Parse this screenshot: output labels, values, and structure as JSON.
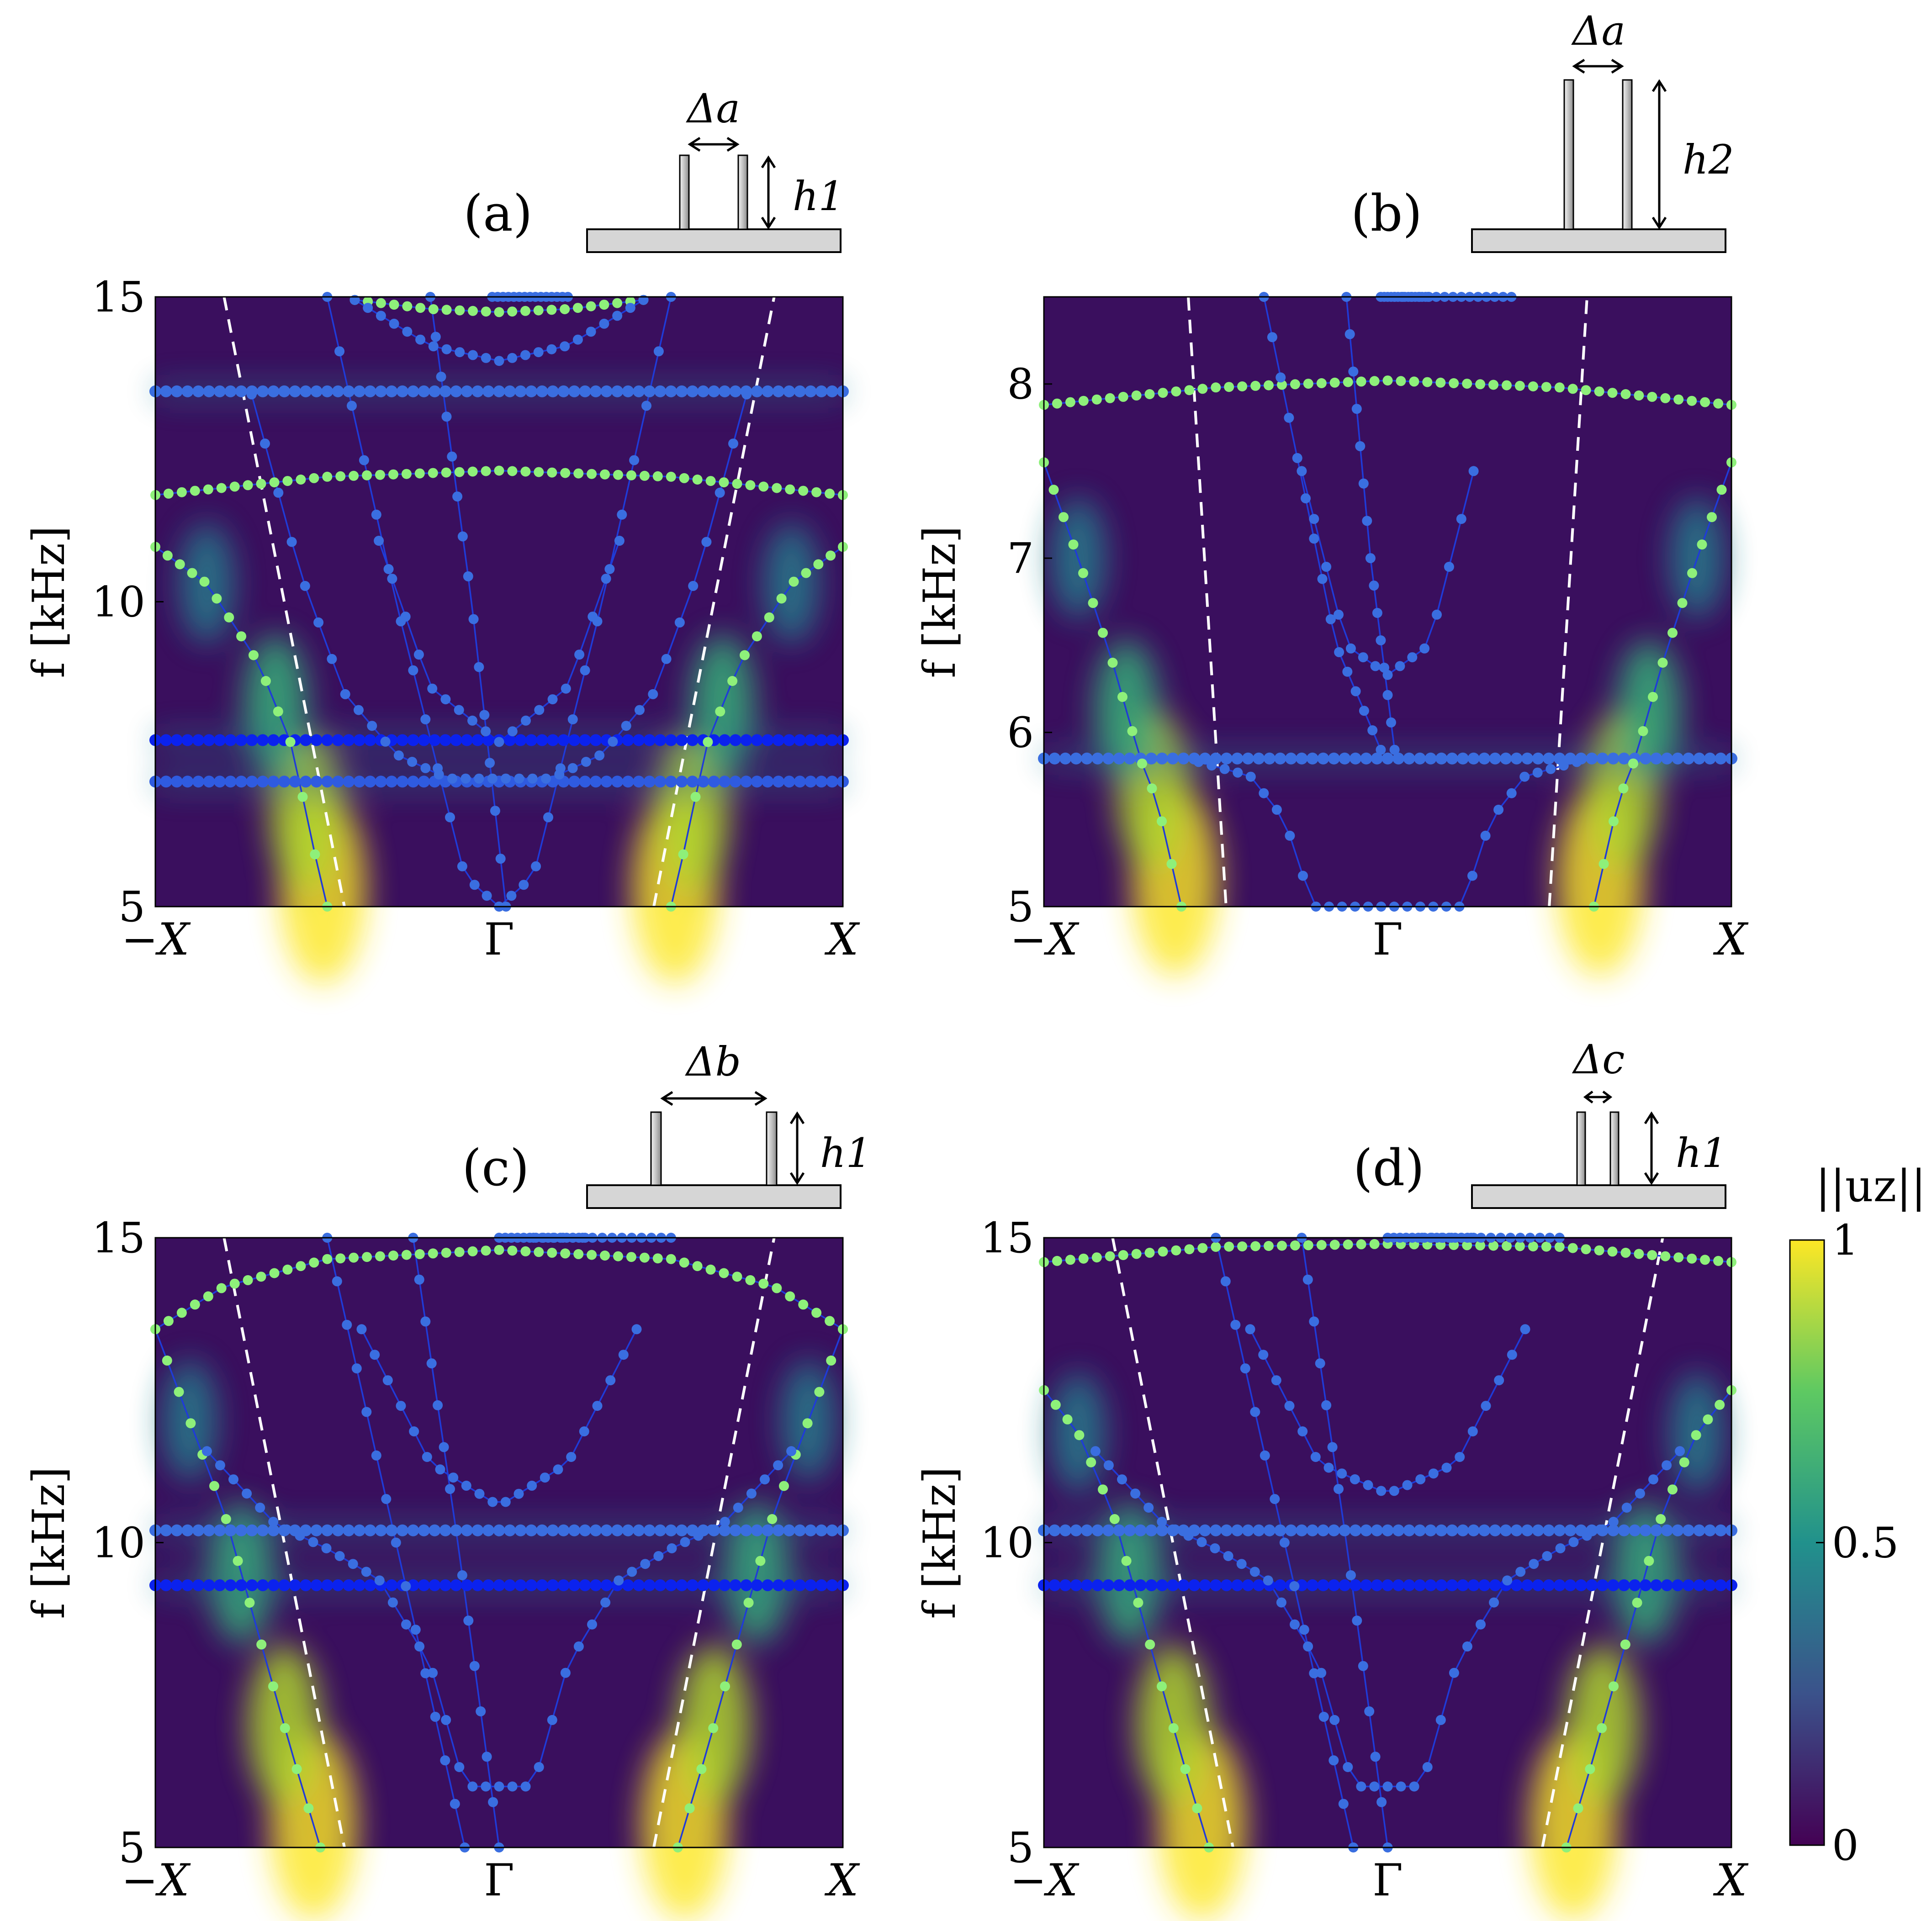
{
  "chart_data": [
    {
      "panel": "(a)",
      "type": "scatter",
      "xlabel": "",
      "ylabel": "f [kHz]",
      "xticks": [
        "−X",
        "Γ",
        "X"
      ],
      "xlim": [
        -1,
        1
      ],
      "ylim": [
        5,
        15
      ],
      "yticks": [
        5,
        10,
        15
      ],
      "inset": {
        "gap_label": "Δa",
        "height_label": "h1"
      },
      "series": [
        {
          "role": "light-line",
          "color": "#ffffff",
          "x": [
            -0.8,
            -0.45,
            0.45,
            0.8
          ],
          "y": [
            15,
            5,
            5,
            15
          ]
        },
        {
          "role": "flat-band",
          "color": "#0b22ee",
          "x": [
            -1,
            1
          ],
          "y": [
            7.73,
            7.73
          ]
        },
        {
          "role": "flat-band",
          "color": "#2f5be0",
          "x": [
            -1,
            1
          ],
          "y": [
            7.05,
            7.05
          ]
        },
        {
          "role": "flat-band",
          "color": "#3a6ee0",
          "x": [
            -1,
            1
          ],
          "y": [
            13.45,
            13.45
          ]
        },
        {
          "role": "band",
          "color": "#8ef07a",
          "x": [
            -1,
            -0.5,
            0,
            0.5,
            1
          ],
          "y": [
            11.75,
            12.05,
            12.15,
            12.05,
            11.75
          ]
        },
        {
          "role": "band",
          "color": "#8ef07a",
          "x": [
            -1,
            -0.85,
            -0.7,
            -0.6,
            -0.55,
            -0.5
          ],
          "y": [
            10.9,
            10.3,
            9.0,
            7.6,
            6.2,
            5.0
          ]
        },
        {
          "role": "band",
          "color": "#8ef07a",
          "x": [
            0.5,
            0.55,
            0.6,
            0.7,
            0.85,
            1
          ],
          "y": [
            5.0,
            6.2,
            7.6,
            9.0,
            10.3,
            10.9
          ]
        },
        {
          "role": "band",
          "color": "#8ef07a",
          "x": [
            -0.42,
            -0.2,
            0,
            0.2,
            0.42
          ],
          "y": [
            14.95,
            14.8,
            14.75,
            14.8,
            14.95
          ]
        },
        {
          "role": "band",
          "color": "#3a6ee0",
          "x": [
            -0.42,
            -0.2,
            0,
            0.2,
            0.42
          ],
          "y": [
            14.95,
            14.2,
            13.95,
            14.2,
            14.95
          ]
        },
        {
          "role": "band",
          "color": "#3a6ee0",
          "x": [
            -0.35,
            -0.2,
            0,
            0.2,
            0.35
          ],
          "y": [
            11.0,
            8.6,
            7.7,
            8.6,
            11.0
          ]
        },
        {
          "role": "band",
          "color": "#3a6ee0",
          "x": [
            -0.72,
            -0.58,
            -0.45,
            -0.3,
            -0.15,
            0.15,
            0.3,
            0.45,
            0.58,
            0.72
          ],
          "y": [
            13.4,
            10.5,
            8.5,
            7.5,
            7.1,
            7.1,
            7.5,
            8.5,
            10.5,
            13.4
          ]
        },
        {
          "role": "band",
          "color": "#3a6ee0",
          "x": [
            -0.5,
            -0.3,
            -0.1,
            0
          ],
          "y": [
            15,
            10,
            5.5,
            5
          ]
        },
        {
          "role": "band",
          "color": "#3a6ee0",
          "x": [
            0,
            0.1,
            0.3,
            0.5
          ],
          "y": [
            5,
            5.5,
            10,
            15
          ]
        },
        {
          "role": "band",
          "color": "#3a6ee0",
          "x": [
            -0.2,
            -0.08,
            0.02
          ],
          "y": [
            15,
            10,
            5
          ]
        },
        {
          "role": "band",
          "color": "#3a6ee0",
          "x": [
            0.2,
            0.08,
            -0.02
          ],
          "y": [
            15,
            10,
            5
          ]
        }
      ]
    },
    {
      "panel": "(b)",
      "type": "scatter",
      "xlabel": "",
      "ylabel": "f [kHz]",
      "xticks": [
        "−X",
        "Γ",
        "X"
      ],
      "xlim": [
        -1,
        1
      ],
      "ylim": [
        5,
        8.5
      ],
      "yticks": [
        5,
        6,
        7,
        8
      ],
      "inset": {
        "gap_label": "Δa",
        "height_label": "h2"
      },
      "series": [
        {
          "role": "light-line",
          "color": "#ffffff",
          "x": [
            -0.58,
            -0.47,
            0.47,
            0.58
          ],
          "y": [
            8.5,
            5,
            5,
            8.5
          ]
        },
        {
          "role": "flat-band",
          "color": "#3a6ee0",
          "x": [
            -1,
            1
          ],
          "y": [
            5.85,
            5.85
          ]
        },
        {
          "role": "band",
          "color": "#8ef07a",
          "x": [
            -1,
            -0.5,
            0,
            0.5,
            1
          ],
          "y": [
            7.88,
            7.98,
            8.02,
            7.98,
            7.88
          ]
        },
        {
          "role": "band",
          "color": "#8ef07a",
          "x": [
            -1,
            -0.9,
            -0.8,
            -0.72,
            -0.67,
            -0.6
          ],
          "y": [
            7.55,
            7.0,
            6.4,
            5.85,
            5.6,
            5.0
          ]
        },
        {
          "role": "band",
          "color": "#8ef07a",
          "x": [
            0.6,
            0.67,
            0.72,
            0.8,
            0.9,
            1
          ],
          "y": [
            5.0,
            5.6,
            5.85,
            6.4,
            7.0,
            7.55
          ]
        },
        {
          "role": "band",
          "color": "#3a6ee0",
          "x": [
            -0.25,
            -0.12,
            0,
            0.12,
            0.25
          ],
          "y": [
            7.5,
            6.5,
            6.33,
            6.5,
            7.5
          ]
        },
        {
          "role": "band",
          "color": "#3a6ee0",
          "x": [
            -0.55,
            -0.4,
            -0.3,
            -0.25,
            -0.22,
            0.22,
            0.25,
            0.3,
            0.4,
            0.55
          ],
          "y": [
            5.83,
            5.75,
            5.5,
            5.2,
            5.0,
            5.0,
            5.2,
            5.5,
            5.75,
            5.83
          ]
        },
        {
          "role": "band",
          "color": "#3a6ee0",
          "x": [
            -0.36,
            -0.15,
            -0.02
          ],
          "y": [
            8.5,
            6.5,
            5.9
          ]
        },
        {
          "role": "band",
          "color": "#3a6ee0",
          "x": [
            0.36,
            0.15,
            0.02
          ],
          "y": [
            8.5,
            6.5,
            5.9
          ]
        },
        {
          "role": "band",
          "color": "#3a6ee0",
          "x": [
            -0.12,
            -0.05,
            0.02
          ],
          "y": [
            8.5,
            7.0,
            5.9
          ]
        },
        {
          "role": "band",
          "color": "#3a6ee0",
          "x": [
            0.12,
            0.05,
            -0.02
          ],
          "y": [
            8.5,
            7.0,
            5.9
          ]
        }
      ]
    },
    {
      "panel": "(c)",
      "type": "scatter",
      "xlabel": "",
      "ylabel": "f [kHz]",
      "xticks": [
        "−X",
        "Γ",
        "X"
      ],
      "xlim": [
        -1,
        1
      ],
      "ylim": [
        5,
        15
      ],
      "yticks": [
        5,
        10,
        15
      ],
      "inset": {
        "gap_label": "Δb",
        "height_label": "h1"
      },
      "series": [
        {
          "role": "light-line",
          "color": "#ffffff",
          "x": [
            -0.8,
            -0.45,
            0.45,
            0.8
          ],
          "y": [
            15,
            5,
            5,
            15
          ]
        },
        {
          "role": "flat-band",
          "color": "#0b22ee",
          "x": [
            -1,
            1
          ],
          "y": [
            9.3,
            9.3
          ]
        },
        {
          "role": "flat-band",
          "color": "#3a6ee0",
          "x": [
            -1,
            1
          ],
          "y": [
            10.2,
            10.2
          ]
        },
        {
          "role": "band",
          "color": "#8ef07a",
          "x": [
            -1,
            -0.8,
            -0.5,
            0,
            0.5,
            0.8,
            1
          ],
          "y": [
            13.5,
            14.2,
            14.65,
            14.8,
            14.65,
            14.2,
            13.5
          ]
        },
        {
          "role": "band",
          "color": "#8ef07a",
          "x": [
            -1,
            -0.9,
            -0.8,
            -0.7,
            -0.6,
            -0.52
          ],
          "y": [
            13.5,
            12.0,
            10.5,
            8.5,
            6.5,
            5.0
          ]
        },
        {
          "role": "band",
          "color": "#8ef07a",
          "x": [
            0.52,
            0.6,
            0.7,
            0.8,
            0.9,
            1
          ],
          "y": [
            5.0,
            6.5,
            8.5,
            10.5,
            12.0,
            13.5
          ]
        },
        {
          "role": "band",
          "color": "#3a6ee0",
          "x": [
            -0.4,
            -0.2,
            0,
            0.2,
            0.4
          ],
          "y": [
            13.5,
            11.3,
            10.6,
            11.3,
            13.5
          ]
        },
        {
          "role": "band",
          "color": "#3a6ee0",
          "x": [
            -0.85,
            -0.65,
            -0.5,
            -0.35,
            -0.2,
            -0.1,
            0.1,
            0.2,
            0.35,
            0.5,
            0.65,
            0.85
          ],
          "y": [
            11.5,
            10.3,
            9.9,
            9.4,
            8.0,
            6.0,
            6.0,
            8.0,
            9.4,
            9.9,
            10.3,
            11.5
          ]
        },
        {
          "role": "band",
          "color": "#3a6ee0",
          "x": [
            -0.5,
            -0.3,
            -0.1
          ],
          "y": [
            15,
            10,
            5
          ]
        },
        {
          "role": "band",
          "color": "#3a6ee0",
          "x": [
            0.5,
            0.3,
            0.1
          ],
          "y": [
            15,
            10,
            5
          ]
        },
        {
          "role": "band",
          "color": "#3a6ee0",
          "x": [
            -0.25,
            -0.12,
            0
          ],
          "y": [
            15,
            10,
            5
          ]
        },
        {
          "role": "band",
          "color": "#3a6ee0",
          "x": [
            0.25,
            0.12,
            0
          ],
          "y": [
            15,
            10,
            5
          ]
        }
      ]
    },
    {
      "panel": "(d)",
      "type": "scatter",
      "xlabel": "",
      "ylabel": "f [kHz]",
      "xticks": [
        "−X",
        "Γ",
        "X"
      ],
      "xlim": [
        -1,
        1
      ],
      "ylim": [
        5,
        15
      ],
      "yticks": [
        5,
        10,
        15
      ],
      "inset": {
        "gap_label": "Δc",
        "height_label": "h1"
      },
      "series": [
        {
          "role": "light-line",
          "color": "#ffffff",
          "x": [
            -0.8,
            -0.45,
            0.45,
            0.8
          ],
          "y": [
            15,
            5,
            5,
            15
          ]
        },
        {
          "role": "flat-band",
          "color": "#0b22ee",
          "x": [
            -1,
            1
          ],
          "y": [
            9.3,
            9.3
          ]
        },
        {
          "role": "flat-band",
          "color": "#3a6ee0",
          "x": [
            -1,
            1
          ],
          "y": [
            10.2,
            10.2
          ]
        },
        {
          "role": "band",
          "color": "#8ef07a",
          "x": [
            -1,
            -0.5,
            0,
            0.5,
            1
          ],
          "y": [
            14.6,
            14.85,
            14.9,
            14.85,
            14.6
          ]
        },
        {
          "role": "band",
          "color": "#8ef07a",
          "x": [
            -1,
            -0.9,
            -0.8,
            -0.7,
            -0.6,
            -0.52
          ],
          "y": [
            12.5,
            11.8,
            10.5,
            8.5,
            6.5,
            5.0
          ]
        },
        {
          "role": "band",
          "color": "#8ef07a",
          "x": [
            0.52,
            0.6,
            0.7,
            0.8,
            0.9,
            1
          ],
          "y": [
            5.0,
            6.5,
            8.5,
            10.5,
            11.8,
            12.5
          ]
        },
        {
          "role": "band",
          "color": "#3a6ee0",
          "x": [
            -0.4,
            -0.2,
            0,
            0.2,
            0.4
          ],
          "y": [
            13.5,
            11.3,
            10.8,
            11.3,
            13.5
          ]
        },
        {
          "role": "band",
          "color": "#3a6ee0",
          "x": [
            -0.85,
            -0.65,
            -0.5,
            -0.35,
            -0.2,
            -0.1,
            0.1,
            0.2,
            0.35,
            0.5,
            0.65,
            0.85
          ],
          "y": [
            11.5,
            10.3,
            9.9,
            9.4,
            8.0,
            6.0,
            6.0,
            8.0,
            9.4,
            9.9,
            10.3,
            11.5
          ]
        },
        {
          "role": "band",
          "color": "#3a6ee0",
          "x": [
            -0.5,
            -0.3,
            -0.1
          ],
          "y": [
            15,
            10,
            5
          ]
        },
        {
          "role": "band",
          "color": "#3a6ee0",
          "x": [
            0.5,
            0.3,
            0.1
          ],
          "y": [
            15,
            10,
            5
          ]
        },
        {
          "role": "band",
          "color": "#3a6ee0",
          "x": [
            -0.25,
            -0.12,
            0
          ],
          "y": [
            15,
            10,
            5
          ]
        },
        {
          "role": "band",
          "color": "#3a6ee0",
          "x": [
            0.25,
            0.12,
            0
          ],
          "y": [
            15,
            10,
            5
          ]
        }
      ]
    }
  ],
  "colorbar": {
    "label": "||uz||",
    "ticks": [
      "0",
      "0.5",
      "1"
    ],
    "range": [
      0,
      1
    ],
    "colors": [
      "#440154",
      "#3b528b",
      "#21918c",
      "#5ec962",
      "#fde725"
    ]
  }
}
